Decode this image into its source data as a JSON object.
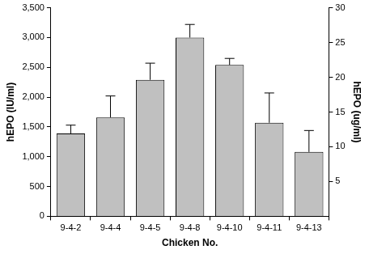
{
  "chart_data": {
    "type": "bar",
    "categories": [
      "9-4-2",
      "9-4-4",
      "9-4-5",
      "9-4-8",
      "9-4-10",
      "9-4-11",
      "9-4-13"
    ],
    "values": [
      1390,
      1660,
      2290,
      3000,
      2540,
      1570,
      1080
    ],
    "errors": [
      140,
      360,
      280,
      220,
      110,
      500,
      360
    ],
    "color": "#c0c0c0",
    "x_label": "Chicken No.",
    "y_label": "hEPO (IU/ml)",
    "y2_label": "hEPO (ug/ml)",
    "ylim": [
      0,
      3500
    ],
    "yticks": [
      0,
      500,
      1000,
      1500,
      2000,
      2500,
      3000,
      3500
    ],
    "y2lim": [
      0,
      30
    ],
    "y2ticks": [
      5,
      10,
      15,
      20,
      25,
      30
    ],
    "grid": false
  }
}
